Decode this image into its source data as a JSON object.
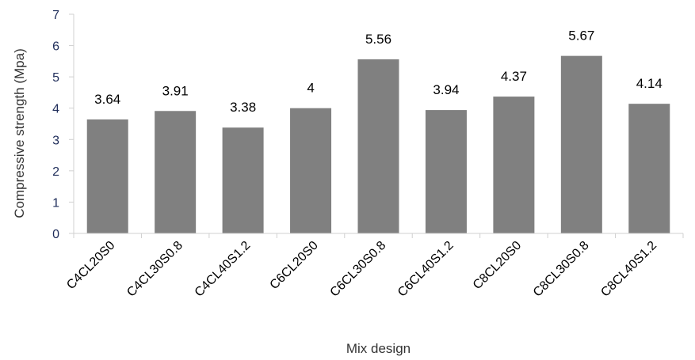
{
  "chart_data": {
    "type": "bar",
    "title": "",
    "xlabel": "Mix design",
    "ylabel": "Compressive strength (Mpa)",
    "categories": [
      "C4CL20S0",
      "C4CL30S0.8",
      "C4CL40S1.2",
      "C6CL20S0",
      "C6CL30S0.8",
      "C6CL40S1.2",
      "C8CL20S0",
      "C8CL30S0.8",
      "C8CL40S1.2"
    ],
    "values": [
      3.64,
      3.91,
      3.38,
      4,
      5.56,
      3.94,
      4.37,
      5.67,
      4.14
    ],
    "value_labels": [
      "3.64",
      "3.91",
      "3.38",
      "4",
      "5.56",
      "3.94",
      "4.37",
      "5.67",
      "4.14"
    ],
    "ylim": [
      0,
      7
    ],
    "yticks": [
      "0",
      "1",
      "2",
      "3",
      "4",
      "5",
      "6",
      "7"
    ],
    "grid": false,
    "legend": "none",
    "colors": {
      "bar": "#808080",
      "axis": "#d0d0d0",
      "ytick": "#1f2d5a"
    }
  }
}
